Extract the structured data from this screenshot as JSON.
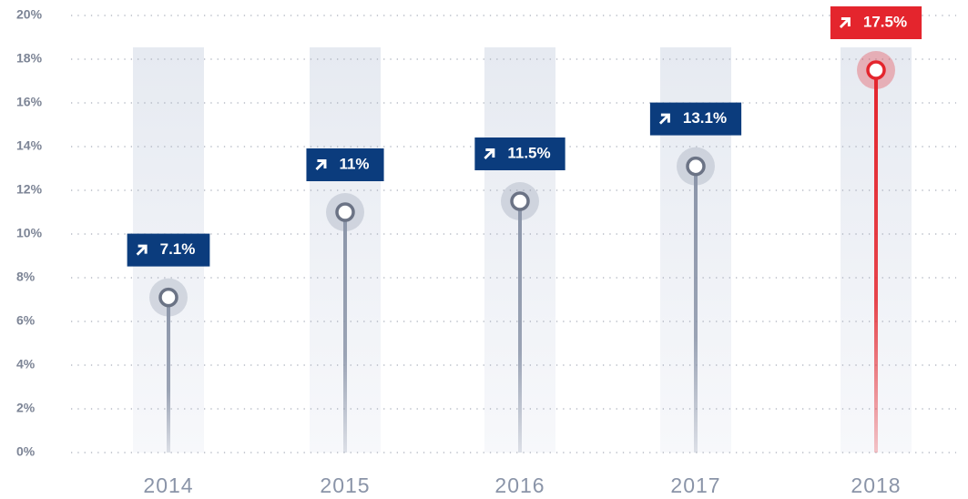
{
  "chart_data": {
    "type": "lollipop",
    "categories": [
      "2014",
      "2015",
      "2016",
      "2017",
      "2018"
    ],
    "values": [
      7.1,
      11,
      11.5,
      13.1,
      17.5
    ],
    "value_labels": [
      "7.1%",
      "11%",
      "11.5%",
      "13.1%",
      "17.5%"
    ],
    "label_colors": [
      "#0b3c7d",
      "#0b3c7d",
      "#0b3c7d",
      "#0b3c7d",
      "#e4252d"
    ],
    "stem_colors": [
      "#8b95a9",
      "#8b95a9",
      "#8b95a9",
      "#8b95a9",
      "#e4252d"
    ],
    "ylim": [
      0,
      20
    ],
    "yticks": [
      {
        "value": 0,
        "label": "0%"
      },
      {
        "value": 2,
        "label": "2%"
      },
      {
        "value": 4,
        "label": "4%"
      },
      {
        "value": 6,
        "label": "6%"
      },
      {
        "value": 8,
        "label": "8%"
      },
      {
        "value": 10,
        "label": "10%"
      },
      {
        "value": 12,
        "label": "12%"
      },
      {
        "value": 14,
        "label": "14%"
      },
      {
        "value": 16,
        "label": "16%"
      },
      {
        "value": 18,
        "label": "18%"
      },
      {
        "value": 20,
        "label": "20%"
      }
    ],
    "grid": true
  }
}
